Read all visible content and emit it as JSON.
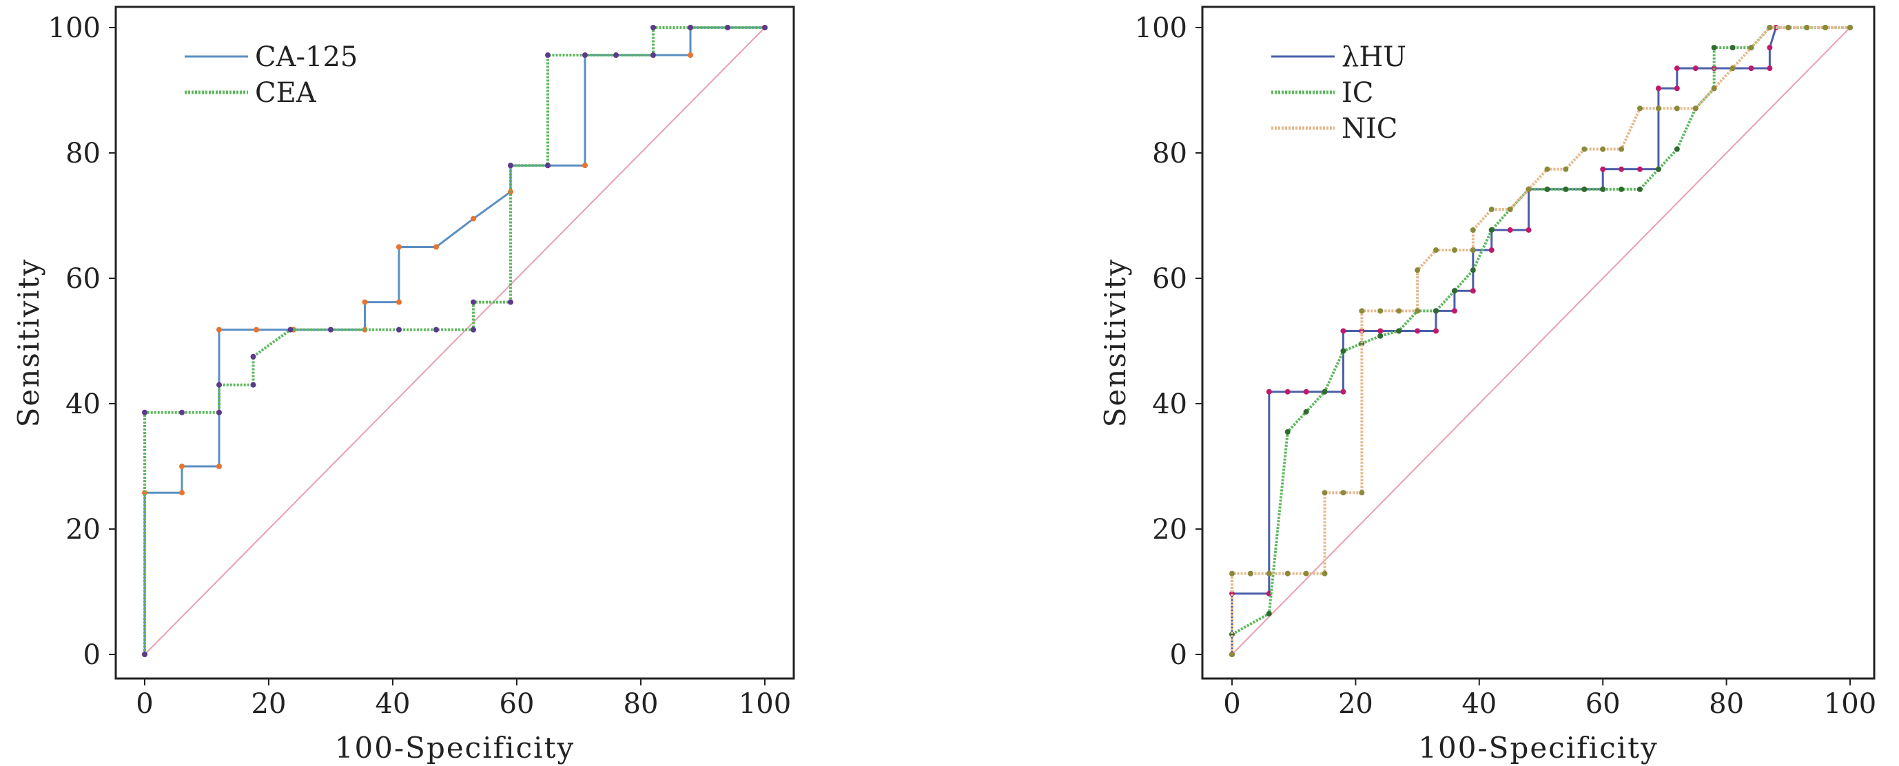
{
  "chart_data": [
    {
      "type": "line",
      "title": "",
      "xlabel": "100-Specificity",
      "ylabel": "Sensitivity",
      "xlim": [
        0,
        100
      ],
      "ylim": [
        0,
        100
      ],
      "xticks": [
        "0",
        "20",
        "40",
        "60",
        "80",
        "100"
      ],
      "yticks": [
        "0",
        "20",
        "40",
        "60",
        "80",
        "100"
      ],
      "grid": false,
      "legend_position": "top-left",
      "reference_line": {
        "x": [
          0,
          100
        ],
        "y": [
          0,
          100
        ],
        "color": "#e8a0b0"
      },
      "series": [
        {
          "name": "CA-125",
          "color": "#5b8fc2",
          "marker_color": "#e8732e",
          "style": "solid",
          "x": [
            0,
            0,
            6,
            6,
            12,
            12,
            18,
            24,
            30,
            35.5,
            35.5,
            41,
            41,
            47,
            53,
            59,
            59,
            65,
            71,
            71,
            76,
            82,
            88,
            88,
            94,
            100
          ],
          "y": [
            0,
            25.8,
            25.8,
            30,
            30,
            51.8,
            51.8,
            51.8,
            51.8,
            51.8,
            56.2,
            56.2,
            65,
            65,
            69.5,
            73.8,
            78,
            78,
            78,
            95.6,
            95.6,
            95.6,
            95.6,
            100,
            100,
            100
          ]
        },
        {
          "name": "CEA",
          "color": "#5cb85c",
          "marker_color": "#5b3a8c",
          "style": "dotted",
          "x": [
            0,
            0,
            6,
            12,
            12,
            17.5,
            17.5,
            23.5,
            30,
            41,
            47,
            53,
            53,
            59,
            59,
            65,
            65,
            71,
            76,
            82,
            82,
            88,
            94,
            100
          ],
          "y": [
            0,
            38.6,
            38.6,
            38.6,
            43,
            43,
            47.5,
            51.8,
            51.8,
            51.8,
            51.8,
            51.8,
            56.2,
            56.2,
            78,
            78,
            95.6,
            95.6,
            95.6,
            95.6,
            100,
            100,
            100,
            100
          ]
        }
      ]
    },
    {
      "type": "line",
      "title": "",
      "xlabel": "100-Specificity",
      "ylabel": "Sensitivity",
      "xlim": [
        0,
        100
      ],
      "ylim": [
        0,
        100
      ],
      "xticks": [
        "0",
        "20",
        "40",
        "60",
        "80",
        "100"
      ],
      "yticks": [
        "0",
        "20",
        "40",
        "60",
        "80",
        "100"
      ],
      "grid": false,
      "legend_position": "top-left",
      "reference_line": {
        "x": [
          0,
          100
        ],
        "y": [
          0,
          100
        ],
        "color": "#e8a0b0"
      },
      "series": [
        {
          "name": "λHU",
          "color": "#4a5fa8",
          "marker_color": "#c2186b",
          "style": "solid",
          "x": [
            0,
            0,
            6,
            6,
            9,
            12,
            15,
            18,
            18,
            21,
            24,
            27,
            30,
            33,
            33,
            36,
            36,
            39,
            39,
            42,
            42,
            45,
            48,
            48,
            51,
            54,
            57,
            60,
            60,
            63,
            66,
            69,
            69,
            72,
            72,
            75,
            78,
            81,
            84,
            87,
            87,
            88
          ],
          "y": [
            0,
            9.7,
            9.7,
            41.9,
            41.9,
            41.9,
            41.9,
            41.9,
            51.6,
            51.6,
            51.6,
            51.6,
            51.6,
            51.6,
            54.8,
            54.8,
            58,
            58,
            64.5,
            64.5,
            67.7,
            67.7,
            67.7,
            74.2,
            74.2,
            74.2,
            74.2,
            74.2,
            77.4,
            77.4,
            77.4,
            77.4,
            90.3,
            90.3,
            93.5,
            93.5,
            93.5,
            93.5,
            93.5,
            93.5,
            96.8,
            100
          ]
        },
        {
          "name": "IC",
          "color": "#5cb85c",
          "marker_color": "#2e6b2e",
          "style": "dotted",
          "x": [
            0,
            6,
            9,
            12,
            15,
            18,
            21,
            24,
            27,
            30,
            33,
            36,
            39,
            42,
            45,
            48,
            51,
            54,
            57,
            60,
            63,
            66,
            69,
            72,
            75,
            78,
            78,
            81,
            84,
            87,
            90,
            93,
            96,
            100
          ],
          "y": [
            3.2,
            6.5,
            35.5,
            38.7,
            41.9,
            48.4,
            49.6,
            50.8,
            51.6,
            54.8,
            54.8,
            58,
            61.3,
            67.7,
            71,
            74.2,
            74.2,
            74.2,
            74.2,
            74.2,
            74.2,
            74.2,
            77.4,
            80.6,
            87.1,
            90.3,
            96.8,
            96.8,
            96.8,
            100,
            100,
            100,
            100,
            100
          ]
        },
        {
          "name": "NIC",
          "color": "#e6b88a",
          "marker_color": "#8a8a3a",
          "style": "dotted",
          "x": [
            0,
            0,
            3,
            6,
            9,
            12,
            15,
            15,
            18,
            21,
            21,
            24,
            27,
            30,
            30,
            33,
            36,
            39,
            39,
            42,
            45,
            48,
            51,
            54,
            57,
            60,
            63,
            66,
            69,
            72,
            75,
            78,
            81,
            84,
            87,
            90,
            93,
            96,
            100
          ],
          "y": [
            0,
            12.9,
            12.9,
            12.9,
            12.9,
            12.9,
            12.9,
            25.8,
            25.8,
            25.8,
            54.8,
            54.8,
            54.8,
            54.8,
            61.3,
            64.5,
            64.5,
            64.5,
            67.7,
            71,
            71,
            74.2,
            77.4,
            77.4,
            80.6,
            80.6,
            80.6,
            87.1,
            87.1,
            87.1,
            87.1,
            90.3,
            93.5,
            96.8,
            100,
            100,
            100,
            100,
            100
          ]
        }
      ]
    }
  ]
}
